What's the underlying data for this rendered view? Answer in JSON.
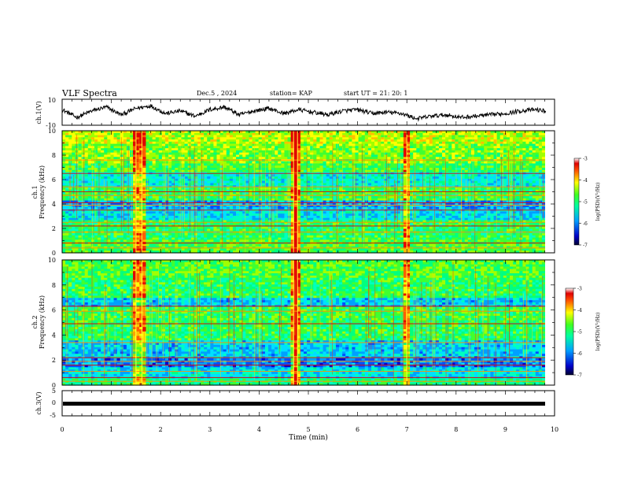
{
  "header": {
    "title": "VLF Spectra",
    "date": "Dec.5 , 2024",
    "station": "station= KAP",
    "start": "start  UT  =   21: 20: 1"
  },
  "chart_data": [
    {
      "type": "line",
      "panel": "ch1-waveform",
      "ylabel": "ch.1(V)",
      "ylim": [
        -10,
        10
      ],
      "yticks": [
        10,
        -10
      ],
      "xlim": [
        0,
        10
      ],
      "anchors_t": [
        0,
        0.3,
        0.6,
        0.9,
        1.2,
        1.5,
        1.8,
        2.1,
        2.4,
        2.7,
        3.0,
        3.3,
        3.6,
        3.9,
        4.2,
        4.5,
        4.8,
        5.1,
        5.4,
        5.7,
        6.0,
        6.3,
        6.6,
        6.9,
        7.2,
        7.5,
        7.8,
        8.1,
        8.4,
        8.7,
        9.0,
        9.3,
        9.6,
        9.82
      ],
      "anchors_v": [
        2,
        -4,
        1,
        4,
        -2,
        3,
        5,
        -1,
        1,
        -3,
        2,
        4,
        -2,
        1,
        3,
        -1,
        2,
        0,
        -2,
        1,
        2,
        -1,
        0,
        -1,
        -5,
        -3,
        -2,
        -4,
        -3,
        -2,
        -1,
        1,
        2,
        1
      ]
    },
    {
      "type": "heatmap",
      "panel": "ch1-spectrogram",
      "ylabel": "ch.1\nFrequency  (kHz)",
      "ylim": [
        0,
        10
      ],
      "yticks": [
        0,
        2,
        4,
        6,
        8,
        10
      ],
      "xlim": [
        0,
        10
      ],
      "colorbar": {
        "label": "log(PSD)(V²/Hz)",
        "range": [
          -7,
          -3
        ],
        "ticks": [
          "-3",
          "-4",
          "-5",
          "-6",
          "-7"
        ]
      },
      "lines_khz": [
        0.4,
        0.8,
        1.7,
        2.2,
        2.5,
        3.5,
        3.9,
        4.1,
        4.7,
        5.0,
        5.4,
        6.5,
        7.6
      ],
      "events_min": [
        1.5,
        1.62,
        4.7,
        4.78,
        7.0
      ]
    },
    {
      "type": "heatmap",
      "panel": "ch2-spectrogram",
      "ylabel": "ch.2\nFrequency  (kHz)",
      "ylim": [
        0,
        10
      ],
      "yticks": [
        0,
        2,
        4,
        6,
        8,
        10
      ],
      "xlim": [
        0,
        10
      ],
      "colorbar": {
        "label": "log(PSD)(V²/Hz)",
        "range": [
          -7,
          -3
        ],
        "ticks": [
          "-3",
          "-4",
          "-5",
          "-6",
          "-7"
        ]
      },
      "lines_khz": [
        0.3,
        0.6,
        1.1,
        1.6,
        1.9,
        2.2,
        3.4,
        4.9,
        5.9,
        6.3
      ],
      "events_min": [
        1.5,
        1.62,
        4.7,
        4.78,
        7.0
      ]
    },
    {
      "type": "line",
      "panel": "ch3-waveform",
      "ylabel": "ch.3(V)",
      "ylim": [
        -5,
        5
      ],
      "yticks": [
        5,
        0,
        -5
      ],
      "xlim": [
        0,
        10
      ],
      "value": -0.2,
      "xlabel": "Time  (min)",
      "xticks": [
        0,
        1,
        2,
        3,
        4,
        5,
        6,
        7,
        8,
        9,
        10
      ]
    }
  ]
}
